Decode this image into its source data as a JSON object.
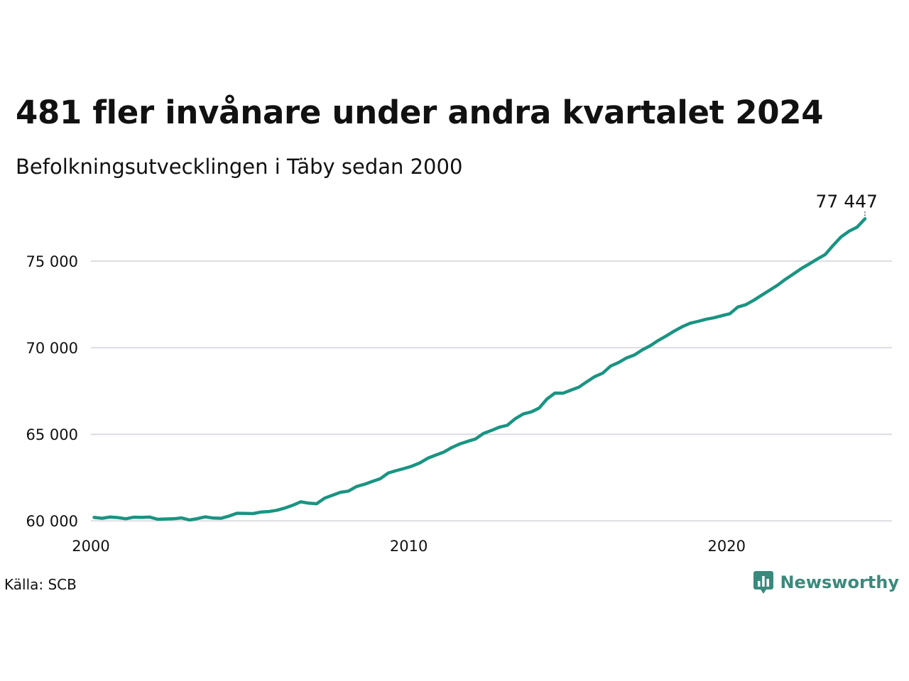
{
  "title": "481 fler invånare under andra kvartalet 2024",
  "subtitle": "Befolkningsutvecklingen i Täby sedan 2000",
  "source": "Källa: SCB",
  "brand": {
    "name": "Newsworthy",
    "icon": "newsworthy-logo-icon",
    "color": "#3a8a7c"
  },
  "chart_data": {
    "type": "line",
    "title": "481 fler invånare under andra kvartalet 2024",
    "subtitle": "Befolkningsutvecklingen i Täby sedan 2000",
    "xlabel": "",
    "ylabel": "",
    "xlim": [
      2000,
      2025.2
    ],
    "ylim": [
      59600,
      78200
    ],
    "x_ticks": [
      2000,
      2010,
      2020
    ],
    "x_tick_labels": [
      "2000",
      "2010",
      "2020"
    ],
    "y_ticks": [
      60000,
      65000,
      70000,
      75000
    ],
    "y_tick_labels": [
      "60 000",
      "65 000",
      "70 000",
      "75 000"
    ],
    "grid": "horizontal",
    "line_color": "#1a9482",
    "end_label": "77 447",
    "series": [
      {
        "x": [
          2000.1,
          2000.35,
          2000.6,
          2000.85,
          2001.1,
          2001.35,
          2001.6,
          2001.85,
          2002.1,
          2002.35,
          2002.6,
          2002.85,
          2003.1,
          2003.35,
          2003.6,
          2003.85,
          2004.1,
          2004.35,
          2004.6,
          2004.85,
          2005.1,
          2005.35,
          2005.6,
          2005.85,
          2006.1,
          2006.35,
          2006.6,
          2006.85,
          2007.1,
          2007.35,
          2007.6,
          2007.85,
          2008.1,
          2008.35,
          2008.6,
          2008.85,
          2009.1,
          2009.35,
          2009.6,
          2009.85,
          2010.1,
          2010.35,
          2010.6,
          2010.85,
          2011.1,
          2011.35,
          2011.6,
          2011.85,
          2012.1,
          2012.35,
          2012.6,
          2012.85,
          2013.1,
          2013.35,
          2013.6,
          2013.85,
          2014.1,
          2014.35,
          2014.6,
          2014.85,
          2015.1,
          2015.35,
          2015.6,
          2015.85,
          2016.1,
          2016.35,
          2016.6,
          2016.85,
          2017.1,
          2017.35,
          2017.6,
          2017.85,
          2018.1,
          2018.35,
          2018.6,
          2018.85,
          2019.1,
          2019.35,
          2019.6,
          2019.85,
          2020.1,
          2020.35,
          2020.6,
          2020.85,
          2021.1,
          2021.35,
          2021.6,
          2021.85,
          2022.1,
          2022.35,
          2022.6,
          2022.85,
          2023.1,
          2023.35,
          2023.6,
          2023.85,
          2024.1,
          2024.35
        ],
        "values": [
          60200,
          60150,
          60220,
          60190,
          60120,
          60210,
          60200,
          60220,
          60090,
          60110,
          60120,
          60170,
          60050,
          60130,
          60230,
          60160,
          60150,
          60280,
          60440,
          60430,
          60420,
          60510,
          60540,
          60610,
          60740,
          60900,
          61100,
          61020,
          60990,
          61310,
          61480,
          61650,
          61720,
          61980,
          62110,
          62270,
          62430,
          62760,
          62900,
          63020,
          63160,
          63350,
          63620,
          63800,
          63970,
          64230,
          64440,
          64590,
          64730,
          65050,
          65220,
          65410,
          65520,
          65900,
          66170,
          66290,
          66510,
          67040,
          67380,
          67370,
          67550,
          67720,
          68030,
          68330,
          68530,
          68940,
          69140,
          69410,
          69580,
          69880,
          70120,
          70420,
          70680,
          70960,
          71210,
          71410,
          71520,
          71640,
          71730,
          71850,
          71960,
          72350,
          72480,
          72740,
          73030,
          73320,
          73610,
          73950,
          74260,
          74570,
          74840,
          75120,
          75380,
          75910,
          76400,
          76730,
          76960,
          77447
        ]
      }
    ]
  }
}
